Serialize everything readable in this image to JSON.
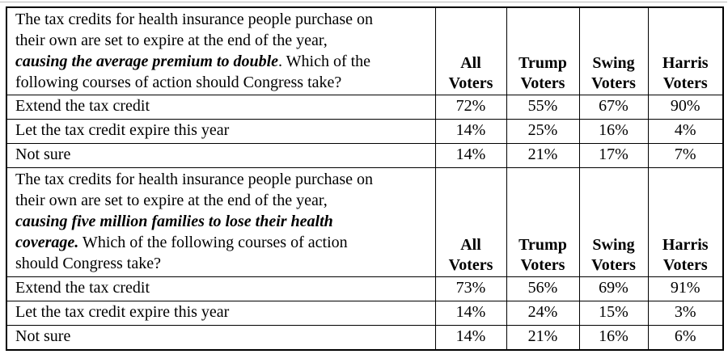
{
  "colors": {
    "background": "#ffffff",
    "border": "#000000",
    "text": "#000000",
    "artifact_line": "#b9b9b9"
  },
  "table": {
    "columns": [
      "All Voters",
      "Trump Voters",
      "Swing Voters",
      "Harris Voters"
    ],
    "sections": [
      {
        "question_lines": [
          [
            {
              "t": "The tax credits for health insurance people purchase on"
            }
          ],
          [
            {
              "t": "their own are set to expire at the end of the year,"
            }
          ],
          [
            {
              "t": "causing the average premium to double",
              "em": true
            },
            {
              "t": ". Which of the"
            }
          ],
          [
            {
              "t": "following courses of action should Congress take?"
            }
          ]
        ],
        "rows": [
          {
            "label": "Extend the tax credit",
            "values": [
              "72%",
              "55%",
              "67%",
              "90%"
            ]
          },
          {
            "label": "Let the tax credit expire this year",
            "values": [
              "14%",
              "25%",
              "16%",
              "4%"
            ]
          },
          {
            "label": "Not sure",
            "values": [
              "14%",
              "21%",
              "17%",
              "7%"
            ]
          }
        ]
      },
      {
        "question_lines": [
          [
            {
              "t": "The tax credits for health insurance people purchase on"
            }
          ],
          [
            {
              "t": "their own are set to expire at the end of the year,"
            }
          ],
          [
            {
              "t": "causing five million families to lose their health",
              "em": true
            }
          ],
          [
            {
              "t": "coverage.",
              "em": true
            },
            {
              "t": " Which of the following courses of action"
            }
          ],
          [
            {
              "t": "should Congress take?"
            }
          ]
        ],
        "rows": [
          {
            "label": "Extend the tax credit",
            "values": [
              "73%",
              "56%",
              "69%",
              "91%"
            ]
          },
          {
            "label": "Let the tax credit expire this year",
            "values": [
              "14%",
              "24%",
              "15%",
              "3%"
            ]
          },
          {
            "label": "Not sure",
            "values": [
              "14%",
              "21%",
              "16%",
              "6%"
            ]
          }
        ]
      }
    ]
  }
}
